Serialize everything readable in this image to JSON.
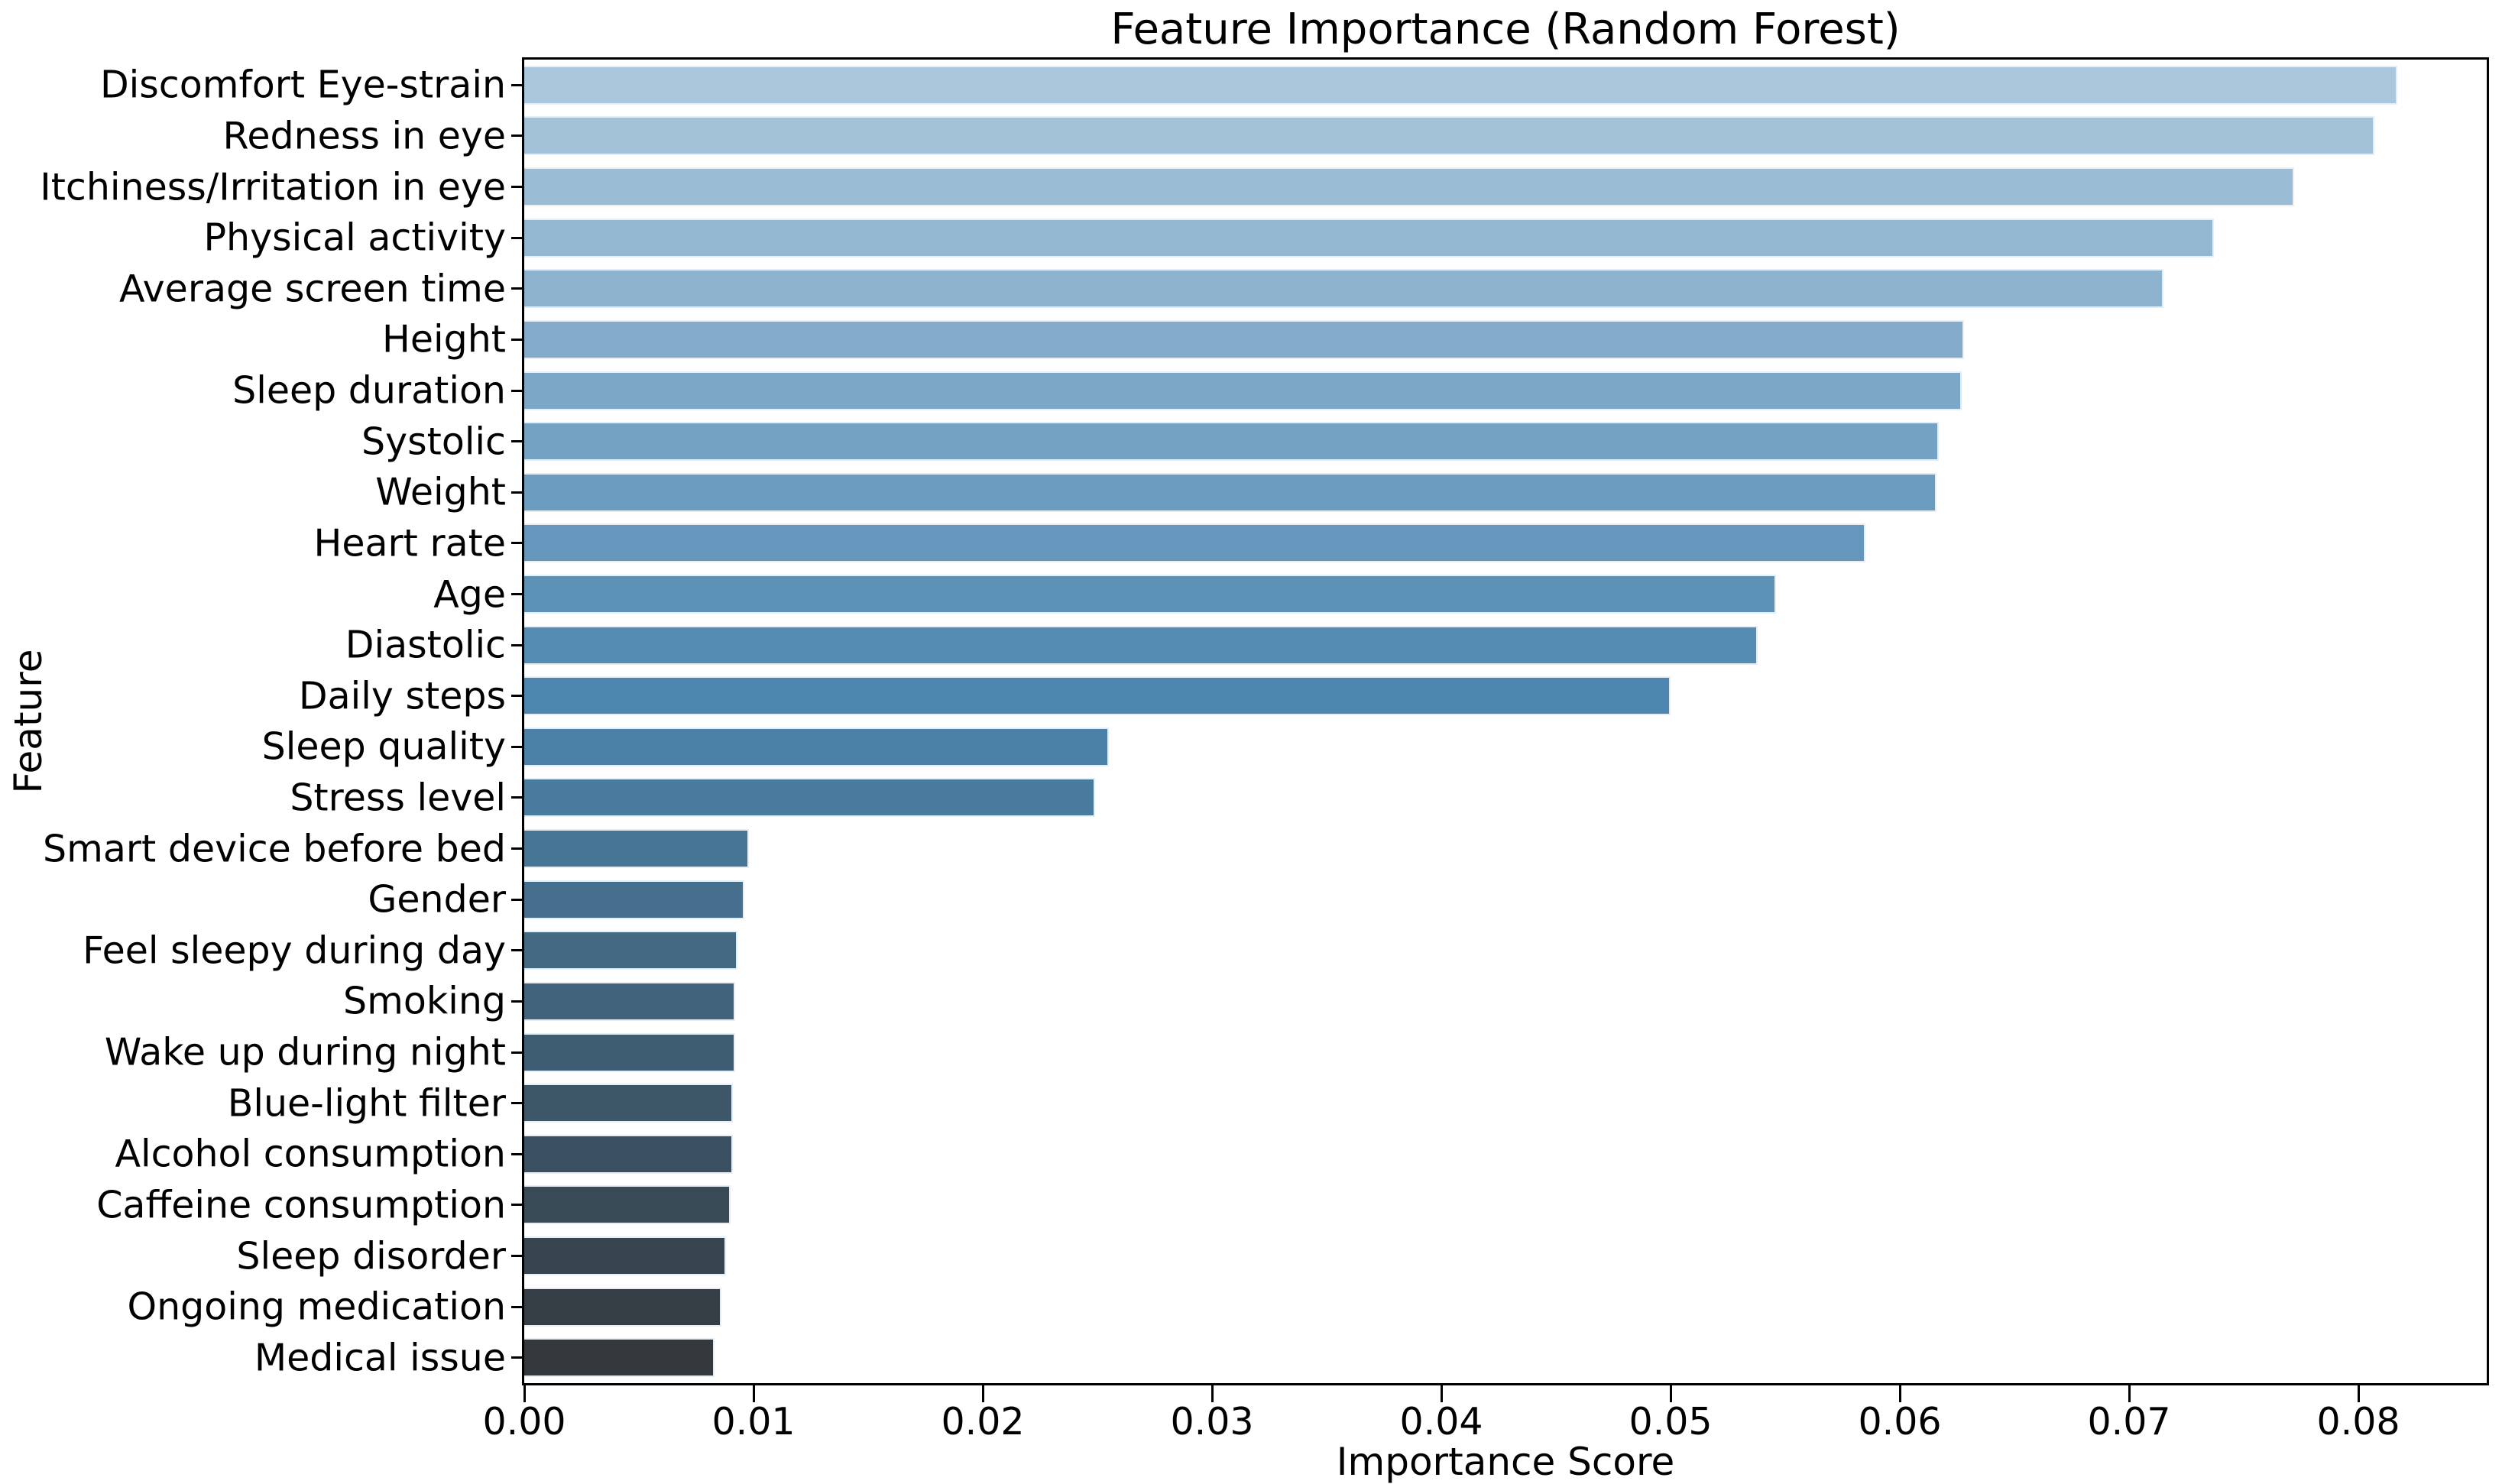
{
  "figure": {
    "background": "#ffffff"
  },
  "chart_data": {
    "type": "bar",
    "orientation": "horizontal",
    "title": "Feature Importance (Random Forest)",
    "xlabel": "Importance Score",
    "ylabel": "Feature",
    "xlim": [
      0,
      0.0856
    ],
    "xticks": [
      0,
      0.01,
      0.02,
      0.03,
      0.04,
      0.05,
      0.06,
      0.07,
      0.08
    ],
    "xtick_labels": [
      "0.00",
      "0.01",
      "0.02",
      "0.03",
      "0.04",
      "0.05",
      "0.06",
      "0.07",
      "0.08"
    ],
    "grid": false,
    "legend": null,
    "categories": [
      "Discomfort Eye-strain",
      "Redness in eye",
      "Itchiness/Irritation in eye",
      "Physical activity",
      "Average screen time",
      "Height",
      "Sleep duration",
      "Systolic",
      "Weight",
      "Heart rate",
      "Age",
      "Diastolic",
      "Daily steps",
      "Sleep quality",
      "Stress level",
      "Smart device before bed",
      "Gender",
      "Feel sleepy during day",
      "Smoking",
      "Wake up during night",
      "Blue-light filter",
      "Alcohol consumption",
      "Caffeine consumption",
      "Sleep disorder",
      "Ongoing medication",
      "Medical issue"
    ],
    "values": [
      0.0817,
      0.0807,
      0.0772,
      0.0737,
      0.0715,
      0.0628,
      0.0627,
      0.0617,
      0.0616,
      0.0585,
      0.0546,
      0.0538,
      0.05,
      0.0255,
      0.0249,
      0.0098,
      0.0096,
      0.0093,
      0.0092,
      0.0092,
      0.0091,
      0.0091,
      0.009,
      0.0088,
      0.0086,
      0.0083
    ],
    "bar_colors": [
      "#abc7dc",
      "#a3c2d8",
      "#9bbcd5",
      "#94b7d1",
      "#8cb2cd",
      "#84acca",
      "#7ca7c6",
      "#74a2c2",
      "#6c9cbf",
      "#6497bb",
      "#5d92b7",
      "#558cb4",
      "#4d87b0",
      "#4b81a7",
      "#497b9e",
      "#477595",
      "#456f8c",
      "#436983",
      "#41637b",
      "#3f5d72",
      "#3d5769",
      "#3b5060",
      "#394a57",
      "#37444e",
      "#353e45",
      "#33383c"
    ],
    "bar_edge_color": "#e6edf4",
    "spine_color": "#000000",
    "text_color": "#000000"
  }
}
